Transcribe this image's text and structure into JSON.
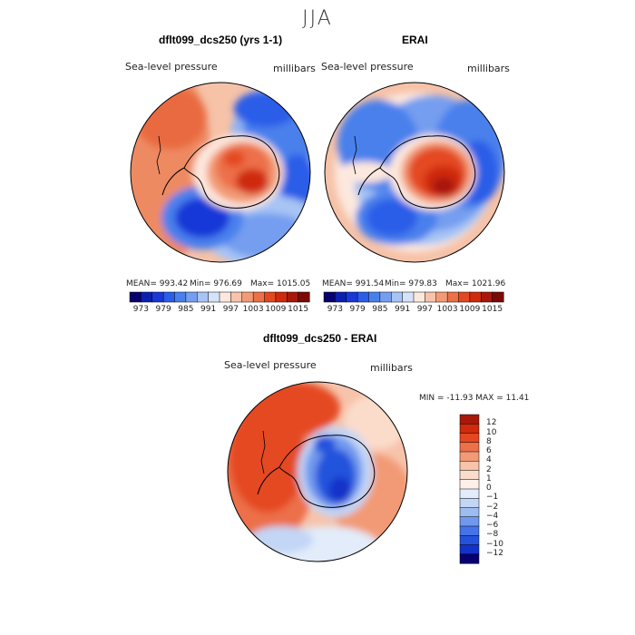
{
  "figure": {
    "season": "JJA",
    "panels": [
      {
        "title": "dflt099_dcs250 (yrs 1-1)",
        "variable": "Sea-level pressure",
        "units": "millibars",
        "stats": {
          "mean": "MEAN= 993.42",
          "min": "Min= 976.69",
          "max": "Max= 1015.05"
        }
      },
      {
        "title": "ERAI",
        "variable": "Sea-level pressure",
        "units": "millibars",
        "stats": {
          "mean": "MEAN= 991.54",
          "min": "Min= 979.83",
          "max": "Max= 1021.96"
        }
      },
      {
        "title": "dflt099_dcs250 - ERAI",
        "variable": "Sea-level pressure",
        "units": "millibars",
        "stats": {
          "minmax": "MIN = -11.93 MAX =  11.41"
        }
      }
    ],
    "horizontal_colorbar": {
      "labels": [
        "973",
        "979",
        "985",
        "991",
        "997",
        "1003",
        "1009",
        "1015"
      ],
      "colors": [
        "#08006e",
        "#0c20b0",
        "#1838d8",
        "#2a5de8",
        "#4a80ec",
        "#749ef0",
        "#a7c4f4",
        "#d4e3f8",
        "#fde8de",
        "#f7c3aa",
        "#f29a75",
        "#ec7048",
        "#e44820",
        "#cf2a0c",
        "#a8180a",
        "#7a0a06"
      ]
    },
    "vertical_colorbar": {
      "labels": [
        "12",
        "10",
        "8",
        "6",
        "4",
        "2",
        "1",
        "0",
        "−1",
        "−2",
        "−4",
        "−6",
        "−8",
        "−10",
        "−12"
      ],
      "colors": [
        "#a8180a",
        "#cf2a0c",
        "#e44820",
        "#ec7048",
        "#f29a75",
        "#f7c3aa",
        "#fbdccb",
        "#fdf0e8",
        "#e2ecfa",
        "#c3d6f6",
        "#9cbcf2",
        "#6f98ee",
        "#4574e8",
        "#2452dc",
        "#1232c8",
        "#08006e"
      ]
    }
  }
}
